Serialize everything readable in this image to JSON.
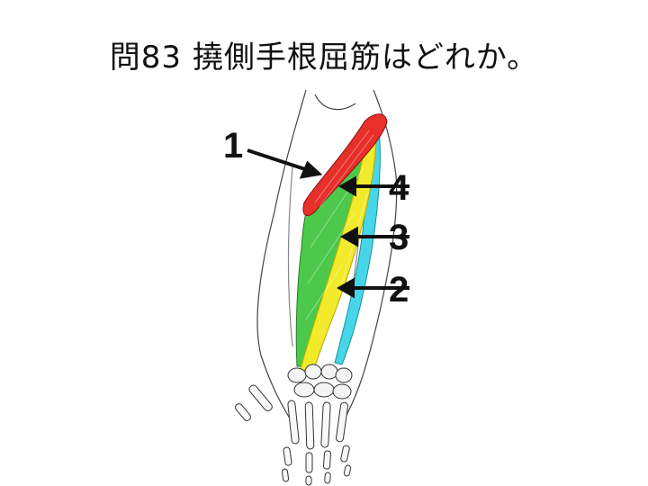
{
  "question": {
    "text": "問83 撓側手根屈筋はどれか。"
  },
  "figure": {
    "labels": [
      "1",
      "2",
      "3",
      "4"
    ],
    "colors": {
      "muscle_1": "#e8302a",
      "muscle_2": "#46d6e8",
      "muscle_3": "#f2ea2a",
      "muscle_4": "#4cc94a",
      "bone": "#333333"
    }
  }
}
